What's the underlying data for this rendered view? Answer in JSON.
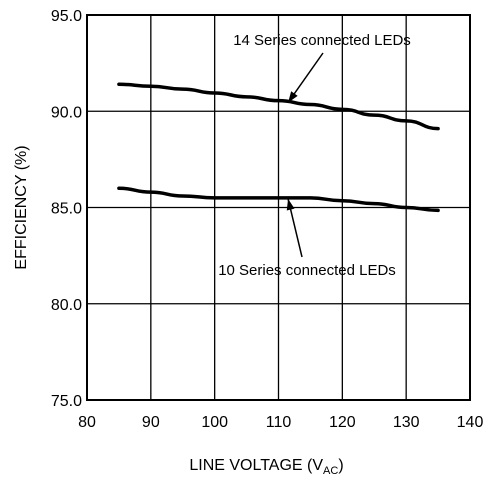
{
  "chart_data": {
    "type": "line",
    "title": "",
    "xlabel_main": "LINE VOLTAGE (V",
    "xlabel_sub": "AC",
    "xlabel_close": ")",
    "ylabel": "EFFICIENCY (%)",
    "xlim": [
      80,
      140
    ],
    "ylim": [
      75,
      95
    ],
    "xticks": [
      80,
      90,
      100,
      110,
      120,
      130,
      140
    ],
    "yticks": [
      75.0,
      80.0,
      85.0,
      90.0,
      95.0
    ],
    "xtick_labels": [
      "80",
      "90",
      "100",
      "110",
      "120",
      "130",
      "140"
    ],
    "ytick_labels": [
      "75.0",
      "80.0",
      "85.0",
      "90.0",
      "95.0"
    ],
    "grid": true,
    "series": [
      {
        "name": "14 Series connected LEDs",
        "x": [
          85,
          90,
          95,
          100,
          105,
          110,
          115,
          120,
          125,
          130,
          135
        ],
        "y": [
          91.4,
          91.3,
          91.15,
          90.95,
          90.75,
          90.55,
          90.35,
          90.1,
          89.8,
          89.5,
          89.1
        ]
      },
      {
        "name": "10 Series connected LEDs",
        "x": [
          85,
          90,
          95,
          100,
          105,
          110,
          115,
          120,
          125,
          130,
          135
        ],
        "y": [
          86.0,
          85.8,
          85.6,
          85.5,
          85.5,
          85.5,
          85.5,
          85.35,
          85.2,
          85.0,
          84.85
        ]
      }
    ],
    "annotations": [
      {
        "text": "14 Series connected LEDs",
        "target_x": 111.5,
        "target_y": 90.45
      },
      {
        "text": "10 Series connected LEDs",
        "target_x": 111.5,
        "target_y": 85.45
      }
    ]
  }
}
